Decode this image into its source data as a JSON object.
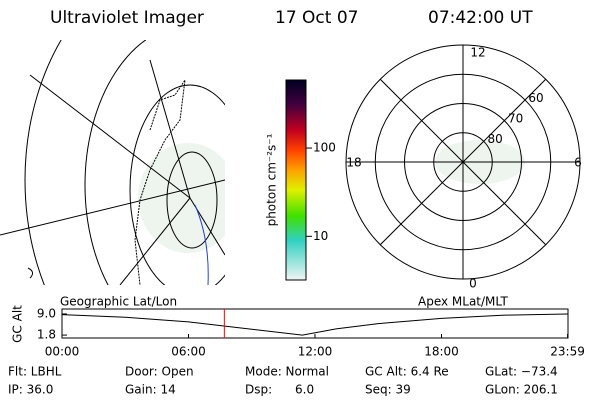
{
  "header": {
    "instrument": "Ultraviolet Imager",
    "date": "17 Oct 07",
    "time": "07:42:00 UT"
  },
  "colorbar": {
    "label": "photon cm⁻²s⁻¹",
    "ticks": [
      10,
      100
    ],
    "lim": [
      3.2,
      590
    ],
    "log": true
  },
  "polar": {
    "lat_lim": [
      50,
      90
    ],
    "lat_ticks": [
      60,
      70,
      80
    ],
    "mlt_labels": [
      "12",
      "18",
      "6",
      "0"
    ]
  },
  "altitude_plot": {
    "y_label": "GC Alt",
    "left_label": "Geographic Lat/Lon",
    "right_label": "Apex MLat/MLT",
    "xlim": [
      0,
      24
    ],
    "xticks": [
      {
        "value": 0,
        "label": "00:00"
      },
      {
        "value": 6,
        "label": "06:00"
      },
      {
        "value": 12,
        "label": "12:00"
      },
      {
        "value": 18,
        "label": "18:00"
      },
      {
        "value": 23.98,
        "label": "23:59"
      }
    ],
    "ylim": [
      0.8,
      10.7
    ],
    "yticks": [
      {
        "value": 9.0,
        "label": "9.0"
      },
      {
        "value": 1.8,
        "label": "1.8"
      }
    ],
    "x": [
      0,
      3,
      6,
      9,
      11.4,
      13,
      15,
      18,
      21,
      23.98
    ],
    "values": [
      8.8,
      7.9,
      6.3,
      3.8,
      1.8,
      3.9,
      5.7,
      7.5,
      8.6,
      9.0
    ],
    "marker_hours": 7.7,
    "marker_color": "#ff0000"
  },
  "info": [
    [
      "Flt: LBHL",
      "Door: Open",
      "Mode: Normal",
      "GC Alt: 6.4 Re",
      "GLat: −73.4"
    ],
    [
      "IP: 36.0",
      "Gain: 14",
      "Dsp:      6.0",
      "Seq: 39",
      "GLon: 206.1"
    ]
  ]
}
